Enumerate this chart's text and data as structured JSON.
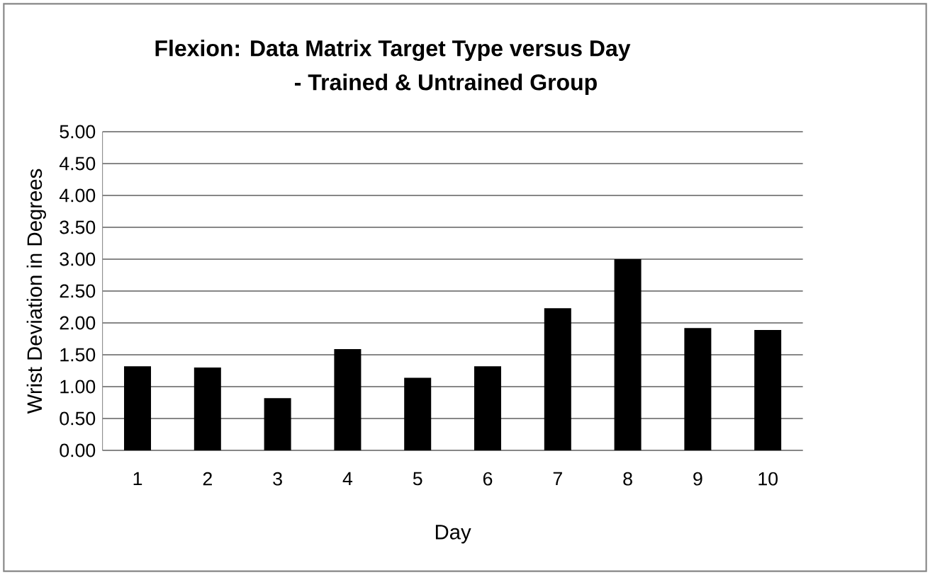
{
  "chart_data": {
    "type": "bar",
    "title": "Flexion: Data Matrix Target Type versus Day",
    "subtitle": "- Trained & Untrained Group",
    "xlabel": "Day",
    "ylabel": "Wrist Deviation in Degrees",
    "categories": [
      "1",
      "2",
      "3",
      "4",
      "5",
      "6",
      "7",
      "8",
      "9",
      "10"
    ],
    "values": [
      1.32,
      1.3,
      0.82,
      1.59,
      1.14,
      1.32,
      2.23,
      3.0,
      1.92,
      1.89
    ],
    "color": "#000000",
    "ylim": [
      0,
      5
    ],
    "yticks": [
      {
        "value": 0,
        "label": "0.00"
      },
      {
        "value": 0.5,
        "label": "0.50"
      },
      {
        "value": 1,
        "label": "1.00"
      },
      {
        "value": 1.5,
        "label": "1.50"
      },
      {
        "value": 2,
        "label": "2.00"
      },
      {
        "value": 2.5,
        "label": "2.50"
      },
      {
        "value": 3,
        "label": "3.00"
      },
      {
        "value": 3.5,
        "label": "3.50"
      },
      {
        "value": 4,
        "label": "4.00"
      },
      {
        "value": 4.5,
        "label": "4.50"
      },
      {
        "value": 5,
        "label": "5.00"
      }
    ],
    "grid": "y"
  }
}
